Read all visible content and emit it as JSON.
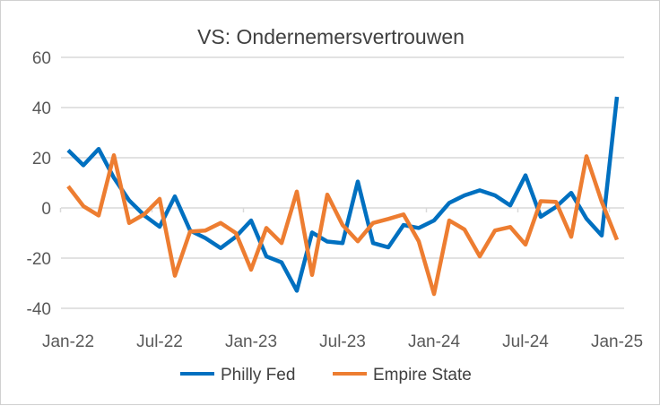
{
  "chart_data": {
    "type": "line",
    "title": "VS: Ondernemersvertrouwen",
    "xlabel": "",
    "ylabel": "",
    "ylim": [
      -40,
      60
    ],
    "yticks": [
      "-40",
      "-20",
      "0",
      "20",
      "40",
      "60"
    ],
    "ytick_values": [
      -40,
      -20,
      0,
      20,
      40,
      60
    ],
    "xtick_labels": [
      "Jan-22",
      "Jul-22",
      "Jan-23",
      "Jul-23",
      "Jan-24",
      "Jul-24",
      "Jan-25"
    ],
    "x_start": "Jan-22",
    "x_end": "Jan-25",
    "grid": true,
    "legend_position": "bottom",
    "series": [
      {
        "name": "Philly Fed",
        "color": "#0070C0",
        "values": [
          23,
          17,
          23.5,
          12,
          3,
          -3,
          -7.5,
          4.6,
          -9,
          -12,
          -16,
          -11.5,
          -5,
          -19.3,
          -21.7,
          -33,
          -9.8,
          -13.4,
          -14,
          10.5,
          -14,
          -15.7,
          -6.8,
          -8,
          -5,
          2,
          5,
          7,
          5,
          1,
          13,
          -3.5,
          0.4,
          6,
          -4.3,
          -11,
          44.3
        ]
      },
      {
        "name": "Empire State",
        "color": "#ED7D31",
        "values": [
          8.6,
          0.7,
          -3,
          21,
          -6,
          -2.5,
          3.6,
          -27,
          -9.4,
          -9,
          -6,
          -10,
          -24.6,
          -8,
          -14,
          6.5,
          -26.7,
          5.3,
          -6.8,
          -13.3,
          -6,
          -4.4,
          -2.6,
          -13.3,
          -34.3,
          -5,
          -8.6,
          -19.3,
          -9,
          -7.6,
          -14.6,
          2.7,
          2.4,
          -11.5,
          20.6,
          2.5,
          -12.7
        ]
      }
    ]
  }
}
